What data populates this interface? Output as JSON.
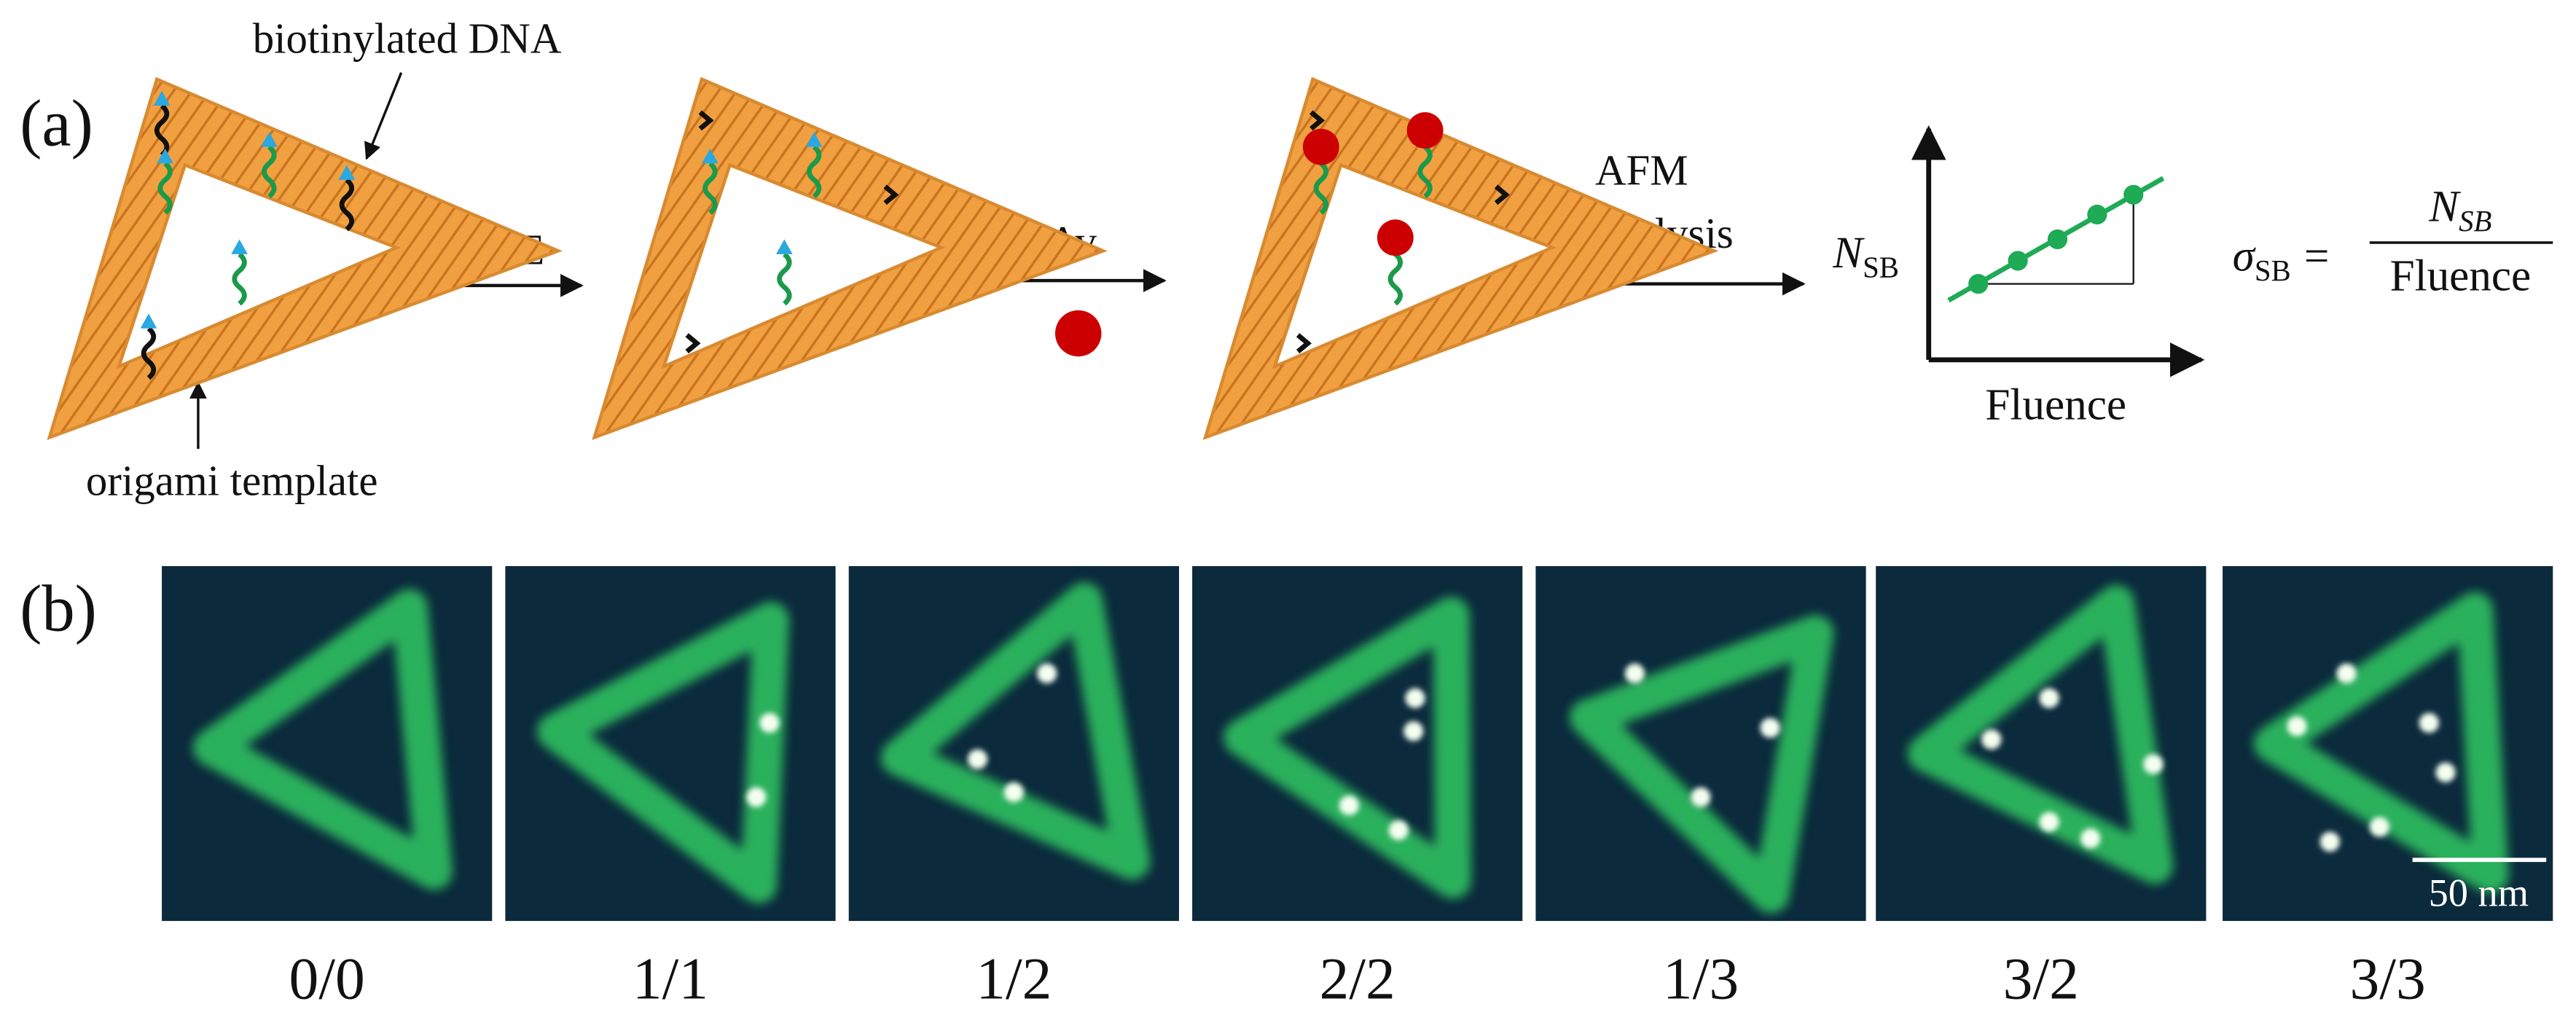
{
  "panel_a": {
    "label": "(a)",
    "annotations": {
      "biotin": "biotinylated DNA",
      "template": "origami template"
    },
    "steps": {
      "irradiation": "LEE",
      "binding": "SAv",
      "analysis_line1": "AFM",
      "analysis_line2": "analysis"
    },
    "plot": {
      "y_label": "N",
      "y_label_sub": "SB",
      "x_label": "Fluence"
    },
    "formula": {
      "lhs": "σ",
      "lhs_sub": "SB",
      "equals": "=",
      "numerator": "N",
      "numerator_sub": "SB",
      "denominator": "Fluence"
    }
  },
  "panel_b": {
    "label": "(b)",
    "scale_bar": "50 nm",
    "images": [
      {
        "label": "0/0"
      },
      {
        "label": "1/1"
      },
      {
        "label": "1/2"
      },
      {
        "label": "2/2"
      },
      {
        "label": "1/3"
      },
      {
        "label": "3/2"
      },
      {
        "label": "3/3"
      }
    ]
  }
}
